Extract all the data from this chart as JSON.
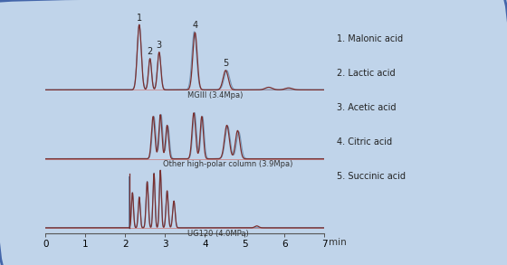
{
  "background_color": "#c0d4ea",
  "border_color": "#4466aa",
  "xmin": 0,
  "xmax": 7,
  "xlabel": "min",
  "xticks": [
    0,
    1,
    2,
    3,
    4,
    5,
    6,
    7
  ],
  "legend_items": [
    "1. Malonic acid",
    "2. Lactic acid",
    "3. Acetic acid",
    "4. Citric acid",
    "5. Succinic acid"
  ],
  "label_mgiii": "MGIII (3.4Mpa)",
  "label_other": "Other high-polar column (3.9Mpa)",
  "label_ug120": "UG120 (4.0MPa)",
  "line_color": "#7a3030",
  "line_color2": "#6688aa",
  "baseline_color": "#cc7777",
  "peak_labels": [
    "1",
    "2",
    "3",
    "4",
    "5"
  ]
}
